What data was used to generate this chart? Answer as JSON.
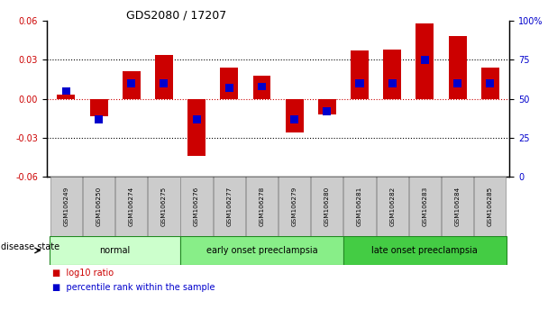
{
  "title": "GDS2080 / 17207",
  "samples": [
    "GSM106249",
    "GSM106250",
    "GSM106274",
    "GSM106275",
    "GSM106276",
    "GSM106277",
    "GSM106278",
    "GSM106279",
    "GSM106280",
    "GSM106281",
    "GSM106282",
    "GSM106283",
    "GSM106284",
    "GSM106285"
  ],
  "log10_ratio": [
    0.003,
    -0.013,
    0.021,
    0.034,
    -0.044,
    0.024,
    0.018,
    -0.026,
    -0.012,
    0.037,
    0.038,
    0.058,
    0.048,
    0.024
  ],
  "percentile_rank": [
    55,
    37,
    60,
    60,
    37,
    57,
    58,
    37,
    42,
    60,
    60,
    75,
    60,
    60
  ],
  "bar_color": "#cc0000",
  "blue_color": "#0000cc",
  "groups": [
    {
      "label": "normal",
      "start": 0,
      "end": 4,
      "color": "#ccffcc"
    },
    {
      "label": "early onset preeclampsia",
      "start": 4,
      "end": 9,
      "color": "#88ee88"
    },
    {
      "label": "late onset preeclampsia",
      "start": 9,
      "end": 14,
      "color": "#44cc44"
    }
  ],
  "ylim_left": [
    -0.06,
    0.06
  ],
  "ylim_right": [
    0,
    100
  ],
  "yticks_left": [
    -0.06,
    -0.03,
    0.0,
    0.03,
    0.06
  ],
  "yticks_right": [
    0,
    25,
    50,
    75,
    100
  ],
  "bar_width": 0.55,
  "blue_bar_width": 0.25
}
